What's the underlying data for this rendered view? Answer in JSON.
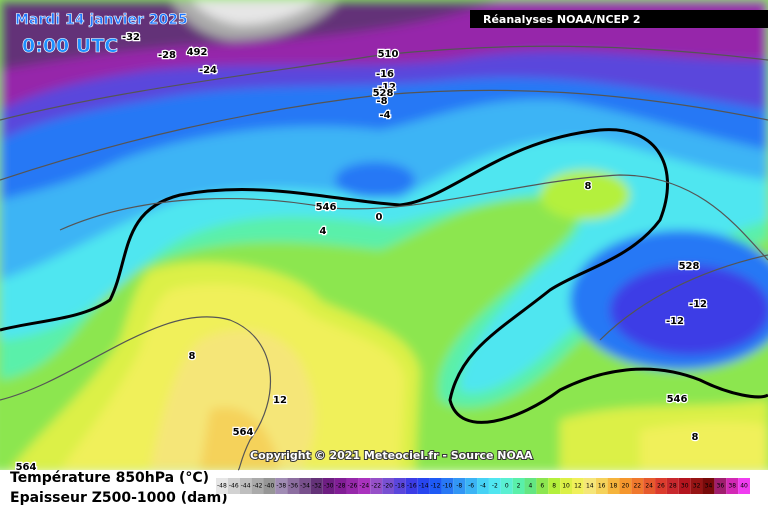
{
  "header": {
    "date": "Mardi 14 janvier 2025",
    "time": "0:00 UTC",
    "source_badge": "Réanalyses NOAA/NCEP 2"
  },
  "contour_labels": [
    -32,
    -28,
    492,
    -24,
    510,
    -16,
    -12,
    528,
    -8,
    -4,
    546,
    0,
    4,
    8,
    528,
    -12,
    -12,
    8,
    12,
    564,
    546,
    8,
    564
  ],
  "copyright": "Copyright © 2021 Meteociel.fr - Source NOAA",
  "legend": {
    "line1": "Température 850hPa (°C)",
    "line2": "Epaisseur Z500-1000 (dam)",
    "values": [
      -48,
      -46,
      -44,
      -42,
      -40,
      -38,
      -36,
      -34,
      -32,
      -30,
      -28,
      -26,
      -24,
      -22,
      -20,
      -18,
      -16,
      -14,
      -12,
      -10,
      -8,
      -6,
      -4,
      -2,
      0,
      2,
      4,
      6,
      8,
      10,
      12,
      14,
      16,
      18,
      20,
      22,
      24,
      26,
      28,
      30,
      32,
      34,
      36,
      38,
      40
    ],
    "colors": [
      "#e6e6e6",
      "#d2d2d2",
      "#bebebe",
      "#aaaaaa",
      "#969696",
      "#a08cb4",
      "#8c6ea0",
      "#78508c",
      "#643278",
      "#6e1e82",
      "#821e96",
      "#9628aa",
      "#aa32be",
      "#9650c8",
      "#7850d2",
      "#5a46dc",
      "#3c3ce6",
      "#2846f0",
      "#1e5af5",
      "#2878f5",
      "#3296f5",
      "#3cb4f5",
      "#46d2f5",
      "#50e6f0",
      "#5af0d2",
      "#5af0aa",
      "#64e682",
      "#8ce650",
      "#b4f03c",
      "#dcf046",
      "#f0f05a",
      "#f5e678",
      "#f5d25a",
      "#f5b43c",
      "#f5962d",
      "#f0782d",
      "#e65a2d",
      "#dc3c2d",
      "#c8282d",
      "#b4141e",
      "#961414",
      "#780a0a",
      "#a01e6e",
      "#d228b4",
      "#f03cf0"
    ]
  }
}
